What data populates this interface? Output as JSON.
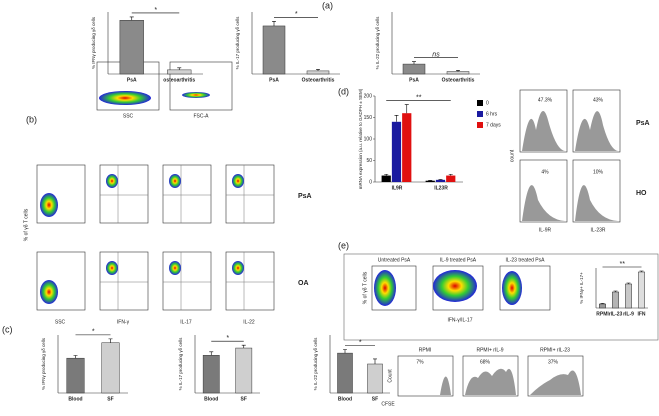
{
  "chart_data": [
    {
      "type": "bar",
      "ylabel": "% IFNγ producing γδ cells",
      "categories": [
        "PsA",
        "osteoarthritis"
      ],
      "values": [
        1.3,
        0.1
      ],
      "errors": [
        0.08,
        0.05
      ],
      "colors": [
        "#8a8a8a",
        "#d2d2d2"
      ],
      "ylim": [
        0,
        1.5
      ],
      "significance": "*"
    },
    {
      "type": "bar",
      "ylabel": "% IL-17 producing γδ cells",
      "categories": [
        "PsA",
        "Osteoarthritis"
      ],
      "values": [
        1.55,
        0.1
      ],
      "errors": [
        0.15,
        0.05
      ],
      "colors": [
        "#8a8a8a",
        "#d2d2d2"
      ],
      "ylim": [
        0,
        2
      ],
      "significance": "*"
    },
    {
      "type": "bar",
      "ylabel": "% IL-22 producing γδ cells",
      "categories": [
        "PsA",
        "Osteoarthritis"
      ],
      "values": [
        0.04,
        0.01
      ],
      "errors": [
        0.01,
        0.005
      ],
      "colors": [
        "#8a8a8a",
        "#d2d2d2"
      ],
      "ylim": [
        0,
        0.25
      ],
      "significance": "ns"
    },
    {
      "type": "bar",
      "ylabel": "% IFNγ producing γδ cells",
      "categories": [
        "Blood",
        "SF"
      ],
      "values": [
        0.9,
        1.3
      ],
      "errors": [
        0.07,
        0.1
      ],
      "colors": [
        "#7a7a7a",
        "#cfcfcf"
      ],
      "ylim": [
        0,
        1.5
      ],
      "significance": "*"
    },
    {
      "type": "bar",
      "ylabel": "% IL-17 producing γδ cells",
      "categories": [
        "Blood",
        "SF"
      ],
      "values": [
        1.3,
        1.55
      ],
      "errors": [
        0.12,
        0.1
      ],
      "colors": [
        "#7a7a7a",
        "#cfcfcf"
      ],
      "ylim": [
        0,
        2
      ],
      "significance": "*"
    },
    {
      "type": "bar",
      "ylabel": "% IL-22 producing γδ cells",
      "categories": [
        "Blood",
        "SF"
      ],
      "values": [
        0.55,
        0.4
      ],
      "errors": [
        0.05,
        0.07
      ],
      "colors": [
        "#7a7a7a",
        "#cfcfcf"
      ],
      "ylim": [
        0,
        0.8
      ],
      "significance": "*"
    },
    {
      "type": "grouped-bar",
      "ylabel": "mRNA expression (a.u. relative to GADPH ± SEM)",
      "categories": [
        "IL9R",
        "IL23R"
      ],
      "series": [
        {
          "name": "0",
          "color": "#000000",
          "values": [
            15,
            3
          ],
          "errors": [
            3,
            1
          ]
        },
        {
          "name": "6 hrs",
          "color": "#1a1aa0",
          "values": [
            140,
            5
          ],
          "errors": [
            15,
            1
          ]
        },
        {
          "name": "7 days",
          "color": "#e01010",
          "values": [
            160,
            15
          ],
          "errors": [
            20,
            3
          ]
        }
      ],
      "ylim": [
        0,
        200
      ],
      "yticks": [
        0,
        50,
        100,
        150,
        200
      ],
      "significance": "**"
    },
    {
      "type": "bar",
      "ylabel": "% IFNγ+ IL-17+",
      "categories": [
        "RPMI",
        "rIL-23",
        "rIL-9",
        "IFN"
      ],
      "values": [
        2,
        8,
        12,
        18
      ],
      "errors": [
        0.3,
        0.5,
        0.5,
        0.5
      ],
      "colors": [
        "#9a9a9a",
        "#b5b5b5",
        "#c8c8c8",
        "#dedede"
      ],
      "ylim": [
        0,
        20
      ],
      "significance": "**"
    }
  ],
  "figure": {
    "panels": [
      "(a)",
      "(b)",
      "(c)",
      "(d)",
      "(e)"
    ],
    "b": {
      "rows": [
        "PsA",
        "OA"
      ],
      "xlabels": [
        "SSC",
        "IFN-γ",
        "IL-17",
        "IL-22"
      ],
      "ylabel": "% of γδ T cells",
      "top": [
        "SSC",
        "FSC-A"
      ]
    },
    "d": {
      "rows": [
        "PsA",
        "HO"
      ],
      "xlabels": [
        "IL-9R",
        "IL-23R"
      ],
      "ylabel": "count",
      "percents": [
        "47.3%",
        "43%",
        "4%",
        "10%"
      ]
    },
    "e": {
      "titles": [
        "Untreated PsA",
        "IL-9 treated PsA",
        "IL-23 treated PsA"
      ],
      "xlabel": "IFN-γ/IL-17",
      "ylabel": "% of γδ T cells",
      "hist_titles": [
        "RPMI",
        "RPMI+ rIL-9",
        "RPMI+ rIL-23"
      ],
      "hist_percents": [
        "7%",
        "68%",
        "37%"
      ],
      "hist_xlabel": "CFSE",
      "hist_ylabel": "Count"
    }
  }
}
